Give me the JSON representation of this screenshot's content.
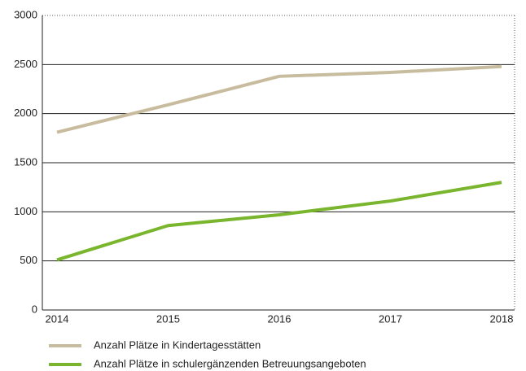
{
  "chart_data": {
    "type": "line",
    "categories": [
      "2014",
      "2015",
      "2016",
      "2017",
      "2018"
    ],
    "series": [
      {
        "name": "Anzahl Plätze in Kindertagesstätten",
        "color": "#c8bc9e",
        "values": [
          1810,
          2090,
          2380,
          2420,
          2480
        ]
      },
      {
        "name": "Anzahl Plätze in schulergänzenden Betreuungsangeboten",
        "color": "#7ab52e",
        "values": [
          510,
          860,
          970,
          1110,
          1300
        ]
      }
    ],
    "ylim": [
      0,
      3000
    ],
    "yticks": [
      0,
      500,
      1000,
      1500,
      2000,
      2500,
      3000
    ],
    "grid": true,
    "legend": "bottom"
  }
}
